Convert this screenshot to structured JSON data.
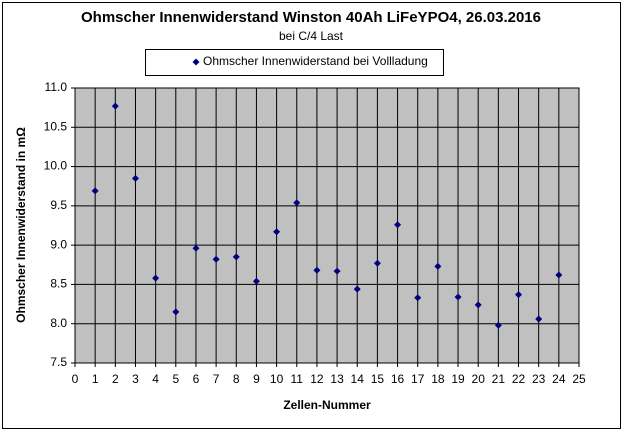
{
  "chart_data": {
    "type": "scatter",
    "title": "Ohmscher Innenwiderstand Winston 40Ah LiFeYPO4, 26.03.2016",
    "subtitle": "bei C/4 Last",
    "x_label": "Zellen-Nummer",
    "y_label": "Ohmscher Innenwiderstand in mΩ",
    "series": [
      {
        "name": "Ohmscher Innenwiderstand bei Vollladung",
        "color": "#000080",
        "x": [
          1,
          2,
          3,
          4,
          5,
          6,
          7,
          8,
          9,
          10,
          11,
          12,
          13,
          14,
          15,
          16,
          17,
          18,
          19,
          20,
          21,
          22,
          23,
          24
        ],
        "values": [
          9.69,
          10.77,
          9.85,
          8.58,
          8.15,
          8.96,
          8.82,
          8.85,
          8.54,
          9.17,
          9.54,
          8.68,
          8.67,
          8.44,
          8.77,
          9.26,
          8.33,
          8.73,
          8.34,
          8.24,
          7.98,
          8.37,
          8.06,
          8.62
        ]
      }
    ],
    "xlim": [
      0,
      25
    ],
    "xticks": [
      0,
      1,
      2,
      3,
      4,
      5,
      6,
      7,
      8,
      9,
      10,
      11,
      12,
      13,
      14,
      15,
      16,
      17,
      18,
      19,
      20,
      21,
      22,
      23,
      24,
      25
    ],
    "ylim": [
      7.5,
      11.0
    ],
    "yticks": [
      {
        "value": 7.5,
        "label": "7.5"
      },
      {
        "value": 8,
        "label": "8.0"
      },
      {
        "value": 8.5,
        "label": "8.5"
      },
      {
        "value": 9,
        "label": "9.0"
      },
      {
        "value": 9.5,
        "label": "9.5"
      },
      {
        "value": 10,
        "label": "10.0"
      },
      {
        "value": 10.5,
        "label": "10.5"
      },
      {
        "value": 11,
        "label": "11.0"
      }
    ],
    "grid": true,
    "legend": "top"
  }
}
